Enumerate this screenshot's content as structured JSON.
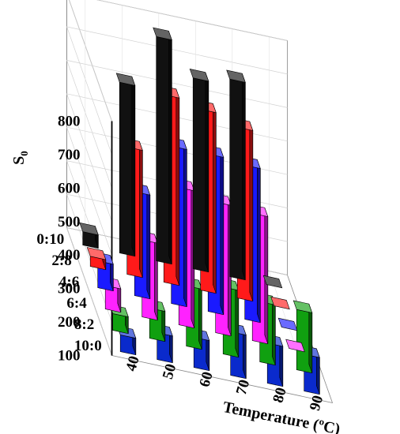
{
  "chart_data": {
    "type": "bar3d",
    "title": "",
    "zlabel": "S",
    "zlabel_sub": "0",
    "xlabel": "Temperature (ºC)",
    "ylabel": "",
    "zlim": [
      100,
      800
    ],
    "z_ticks": [
      "100",
      "200",
      "300",
      "400",
      "500",
      "600",
      "700",
      "800"
    ],
    "x_ticks": [
      "40",
      "50",
      "60",
      "70",
      "80",
      "90"
    ],
    "y_ticks": [
      "0:10",
      "2:8",
      "4:6",
      "6:4",
      "8:2",
      "10:0"
    ],
    "grid": true,
    "colors": [
      "#111111",
      "#ff1a1a",
      "#1a1aff",
      "#ff22ff",
      "#10a010",
      "#0a2acc"
    ],
    "series": [
      {
        "ratio": "0:10",
        "values": [
          140,
          610,
          770,
          670,
          690,
          100
        ]
      },
      {
        "ratio": "2:8",
        "values": [
          130,
          480,
          660,
          640,
          610,
          100
        ]
      },
      {
        "ratio": "4:6",
        "values": [
          180,
          410,
          570,
          570,
          560,
          100
        ]
      },
      {
        "ratio": "6:4",
        "values": [
          170,
          330,
          510,
          490,
          480,
          100
        ]
      },
      {
        "ratio": "8:2",
        "values": [
          150,
          190,
          280,
          300,
          280,
          280
        ]
      },
      {
        "ratio": "10:0",
        "values": [
          150,
          180,
          190,
          230,
          220,
          210
        ]
      }
    ]
  }
}
